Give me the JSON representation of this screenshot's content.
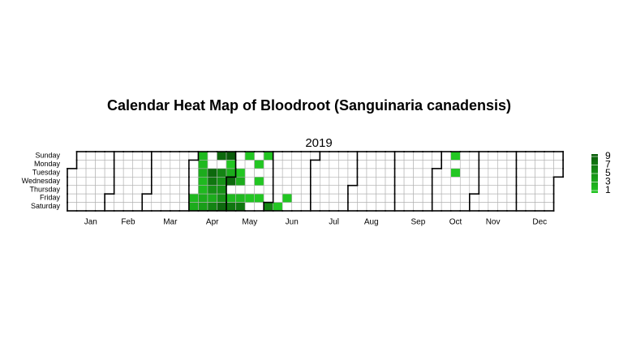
{
  "chart_data": {
    "type": "calendar",
    "title": "Calendar Heat Map of Bloodroot (Sanguinaria canadensis)",
    "year": "2019",
    "weekdays": [
      "Sunday",
      "Monday",
      "Tuesday",
      "Wednesday",
      "Thursday",
      "Friday",
      "Saturday"
    ],
    "months": [
      "Jan",
      "Feb",
      "Mar",
      "Apr",
      "May",
      "Jun",
      "Jul",
      "Aug",
      "Sep",
      "Oct",
      "Nov",
      "Dec"
    ],
    "x": [
      "2019-04-05",
      "2019-04-06",
      "2019-04-07",
      "2019-04-08",
      "2019-04-09",
      "2019-04-10",
      "2019-04-11",
      "2019-04-12",
      "2019-04-13",
      "2019-04-16",
      "2019-04-17",
      "2019-04-18",
      "2019-04-19",
      "2019-04-20",
      "2019-04-21",
      "2019-04-23",
      "2019-04-24",
      "2019-04-25",
      "2019-04-26",
      "2019-04-27",
      "2019-04-28",
      "2019-04-29",
      "2019-04-30",
      "2019-05-01",
      "2019-05-03",
      "2019-05-04",
      "2019-05-07",
      "2019-05-08",
      "2019-05-10",
      "2019-05-11",
      "2019-05-12",
      "2019-05-17",
      "2019-05-20",
      "2019-05-22",
      "2019-05-24",
      "2019-05-26",
      "2019-06-01",
      "2019-06-08",
      "2019-06-14",
      "2019-10-13",
      "2019-10-15"
    ],
    "values": [
      2,
      3,
      2,
      2,
      3,
      2,
      2,
      3,
      4,
      8,
      7,
      5,
      3,
      6,
      8,
      6,
      5,
      5,
      5,
      8,
      9,
      1,
      3,
      8,
      2,
      7,
      1,
      3,
      2,
      7,
      1,
      1,
      1,
      1,
      1,
      1,
      6,
      1,
      1,
      1,
      1
    ],
    "clim": [
      1,
      9
    ],
    "colorbar_ticks": [
      1,
      3,
      5,
      7,
      9
    ],
    "color_low": "#22c622",
    "color_high": "#0a5c0a"
  }
}
